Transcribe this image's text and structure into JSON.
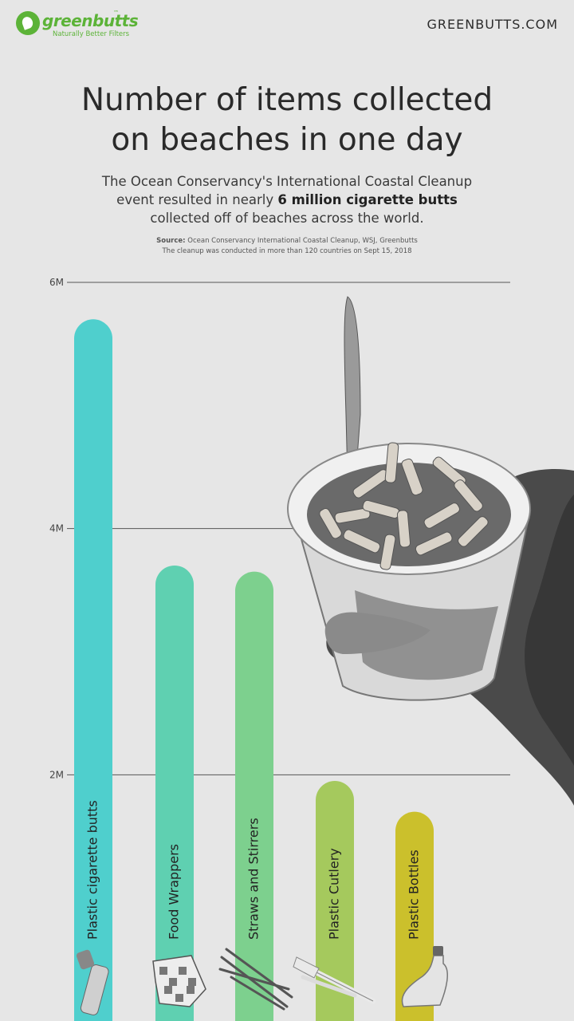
{
  "brand": {
    "name": "greenbutts",
    "tm": "™",
    "tagline": "Naturally Better Filters",
    "site": "GREENBUTTS.COM"
  },
  "header": {
    "title_line1": "Number of items collected",
    "title_line2": "on beaches in one day",
    "subtitle_part1": "The Ocean Conservancy's International Coastal Cleanup event resulted in nearly ",
    "subtitle_bold": "6 million cigarette butts",
    "subtitle_part2": " collected off of beaches across the world.",
    "source_label": "Source:",
    "source_text": " Ocean Conservancy International Coastal Cleanup, WSJ, Greenbutts",
    "source_note": "The cleanup was conducted in more than 120 countries on Sept 15, 2018"
  },
  "colors": {
    "background": "#e6e6e6",
    "grid": "#555555",
    "brand_green": "#5cb338",
    "bars": [
      "#4fcfcd",
      "#5fd0b1",
      "#7dd08e",
      "#a5c95d",
      "#cbc02c"
    ]
  },
  "chart_data": {
    "type": "bar",
    "orientation": "vertical",
    "categories": [
      "Plastic cigarette butts",
      "Food Wrappers",
      "Straws and Stirrers",
      "Plastic Cutlery",
      "Plastic Bottles"
    ],
    "values": [
      5.7,
      3.7,
      3.65,
      1.95,
      1.7
    ],
    "value_unit": "million",
    "ylim": [
      0,
      6
    ],
    "yticks": [
      2,
      4,
      6
    ],
    "ytick_labels": [
      "2M",
      "4M",
      "6M"
    ],
    "grid": true,
    "legend": "none",
    "icons": [
      "cigarette-butt-icon",
      "food-wrapper-icon",
      "straw-icon",
      "plastic-fork-icon",
      "plastic-bottle-icon"
    ]
  }
}
